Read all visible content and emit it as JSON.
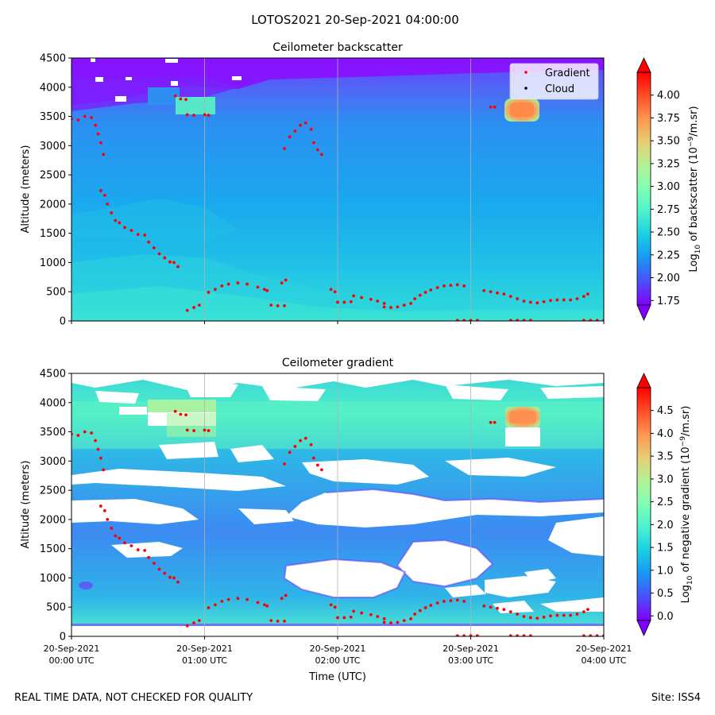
{
  "figure": {
    "suptitle": "LOTOS2021 20-Sep-2021 04:00:00",
    "footer_left": "REAL TIME DATA, NOT CHECKED FOR QUALITY",
    "footer_right": "Site: ISS4"
  },
  "chart_data": [
    {
      "type": "heatmap",
      "title": "Ceilometer backscatter",
      "xlabel": "",
      "ylabel": "Altitude (meters)",
      "xlim": [
        0,
        4
      ],
      "ylim": [
        0,
        4500
      ],
      "yticks": [
        "0",
        "500",
        "1000",
        "1500",
        "2000",
        "2500",
        "3000",
        "3500",
        "4000",
        "4500"
      ],
      "grid": "vertical lines at hourly ticks",
      "colorbar": {
        "label_pre": "Log",
        "label_sub": "10",
        "label_mid": " of backscatter (10",
        "label_sup": "−9",
        "label_post": "/m.sr)",
        "range": [
          1.7,
          4.25
        ],
        "ticks": [
          "1.75",
          "2.00",
          "2.25",
          "2.50",
          "2.75",
          "3.00",
          "3.25",
          "3.50",
          "3.75",
          "4.00"
        ]
      },
      "legend": {
        "position": "top-right",
        "entries": [
          {
            "name": "Gradient",
            "color": "#ff0000"
          },
          {
            "name": "Cloud",
            "color": "#000000"
          }
        ]
      },
      "series": [
        {
          "name": "Gradient",
          "color": "#ff0000",
          "points": [
            [
              0.0,
              3460
            ],
            [
              0.05,
              3440
            ],
            [
              0.1,
              3500
            ],
            [
              0.15,
              3480
            ],
            [
              0.18,
              3350
            ],
            [
              0.2,
              3200
            ],
            [
              0.22,
              3050
            ],
            [
              0.24,
              2850
            ],
            [
              0.22,
              2230
            ],
            [
              0.25,
              2150
            ],
            [
              0.27,
              2000
            ],
            [
              0.3,
              1850
            ],
            [
              0.33,
              1720
            ],
            [
              0.36,
              1680
            ],
            [
              0.4,
              1600
            ],
            [
              0.45,
              1550
            ],
            [
              0.5,
              1480
            ],
            [
              0.55,
              1470
            ],
            [
              0.58,
              1350
            ],
            [
              0.62,
              1250
            ],
            [
              0.66,
              1150
            ],
            [
              0.7,
              1080
            ],
            [
              0.74,
              1010
            ],
            [
              0.77,
              1000
            ],
            [
              0.8,
              930
            ],
            [
              0.78,
              3850
            ],
            [
              0.82,
              3800
            ],
            [
              0.86,
              3790
            ],
            [
              0.87,
              3530
            ],
            [
              0.92,
              3520
            ],
            [
              1.0,
              3530
            ],
            [
              1.03,
              3520
            ],
            [
              0.87,
              180
            ],
            [
              0.92,
              230
            ],
            [
              0.96,
              270
            ],
            [
              1.03,
              490
            ],
            [
              1.08,
              540
            ],
            [
              1.13,
              600
            ],
            [
              1.18,
              630
            ],
            [
              1.25,
              650
            ],
            [
              1.32,
              630
            ],
            [
              1.4,
              580
            ],
            [
              1.45,
              540
            ],
            [
              1.47,
              520
            ],
            [
              1.5,
              270
            ],
            [
              1.55,
              260
            ],
            [
              1.6,
              260
            ],
            [
              1.58,
              650
            ],
            [
              1.61,
              700
            ],
            [
              1.6,
              2950
            ],
            [
              1.64,
              3150
            ],
            [
              1.68,
              3250
            ],
            [
              1.72,
              3350
            ],
            [
              1.76,
              3390
            ],
            [
              1.8,
              3280
            ],
            [
              1.82,
              3050
            ],
            [
              1.85,
              2930
            ],
            [
              1.88,
              2850
            ],
            [
              1.95,
              540
            ],
            [
              1.98,
              500
            ],
            [
              2.0,
              320
            ],
            [
              2.05,
              320
            ],
            [
              2.1,
              330
            ],
            [
              2.12,
              430
            ],
            [
              2.18,
              400
            ],
            [
              2.25,
              370
            ],
            [
              2.3,
              340
            ],
            [
              2.35,
              300
            ],
            [
              2.35,
              240
            ],
            [
              2.4,
              230
            ],
            [
              2.45,
              240
            ],
            [
              2.5,
              270
            ],
            [
              2.55,
              300
            ],
            [
              2.58,
              380
            ],
            [
              2.62,
              440
            ],
            [
              2.66,
              490
            ],
            [
              2.7,
              530
            ],
            [
              2.75,
              570
            ],
            [
              2.8,
              600
            ],
            [
              2.85,
              610
            ],
            [
              2.9,
              620
            ],
            [
              2.95,
              600
            ],
            [
              2.9,
              10
            ],
            [
              2.95,
              10
            ],
            [
              3.0,
              10
            ],
            [
              3.05,
              10
            ],
            [
              3.1,
              520
            ],
            [
              3.15,
              500
            ],
            [
              3.2,
              480
            ],
            [
              3.25,
              460
            ],
            [
              3.3,
              420
            ],
            [
              3.35,
              380
            ],
            [
              3.4,
              340
            ],
            [
              3.45,
              320
            ],
            [
              3.5,
              310
            ],
            [
              3.55,
              330
            ],
            [
              3.6,
              350
            ],
            [
              3.65,
              360
            ],
            [
              3.7,
              360
            ],
            [
              3.75,
              360
            ],
            [
              3.8,
              380
            ],
            [
              3.85,
              420
            ],
            [
              3.88,
              460
            ],
            [
              3.15,
              3660
            ],
            [
              3.18,
              3660
            ],
            [
              3.3,
              10
            ],
            [
              3.35,
              10
            ],
            [
              3.4,
              10
            ],
            [
              3.45,
              10
            ],
            [
              3.85,
              10
            ],
            [
              3.9,
              10
            ],
            [
              3.95,
              10
            ],
            [
              4.0,
              10
            ]
          ]
        }
      ]
    },
    {
      "type": "heatmap",
      "title": "Ceilometer gradient",
      "xlabel": "Time (UTC)",
      "ylabel": "Altitude (meters)",
      "xlim": [
        0,
        4
      ],
      "ylim": [
        0,
        4500
      ],
      "xticks": [
        {
          "line1": "20-Sep-2021",
          "line2": "00:00 UTC"
        },
        {
          "line1": "20-Sep-2021",
          "line2": "01:00 UTC"
        },
        {
          "line1": "20-Sep-2021",
          "line2": "02:00 UTC"
        },
        {
          "line1": "20-Sep-2021",
          "line2": "03:00 UTC"
        },
        {
          "line1": "20-Sep-2021",
          "line2": "04:00 UTC"
        }
      ],
      "yticks": [
        "0",
        "500",
        "1000",
        "1500",
        "2000",
        "2500",
        "3000",
        "3500",
        "4000",
        "4500"
      ],
      "grid": "vertical lines at hourly ticks",
      "colorbar": {
        "label_pre": "Log",
        "label_sub": "10",
        "label_mid": " of negative gradient (10",
        "label_sup": "−9",
        "label_post": "/m.sr)",
        "range": [
          -0.1,
          5.0
        ],
        "ticks": [
          "0.0",
          "0.5",
          "1.0",
          "1.5",
          "2.0",
          "2.5",
          "3.0",
          "3.5",
          "4.0",
          "4.5"
        ]
      },
      "series": [
        {
          "name": "Gradient",
          "color": "#ff0000",
          "points_source": "same as backscatter panel"
        }
      ]
    }
  ]
}
